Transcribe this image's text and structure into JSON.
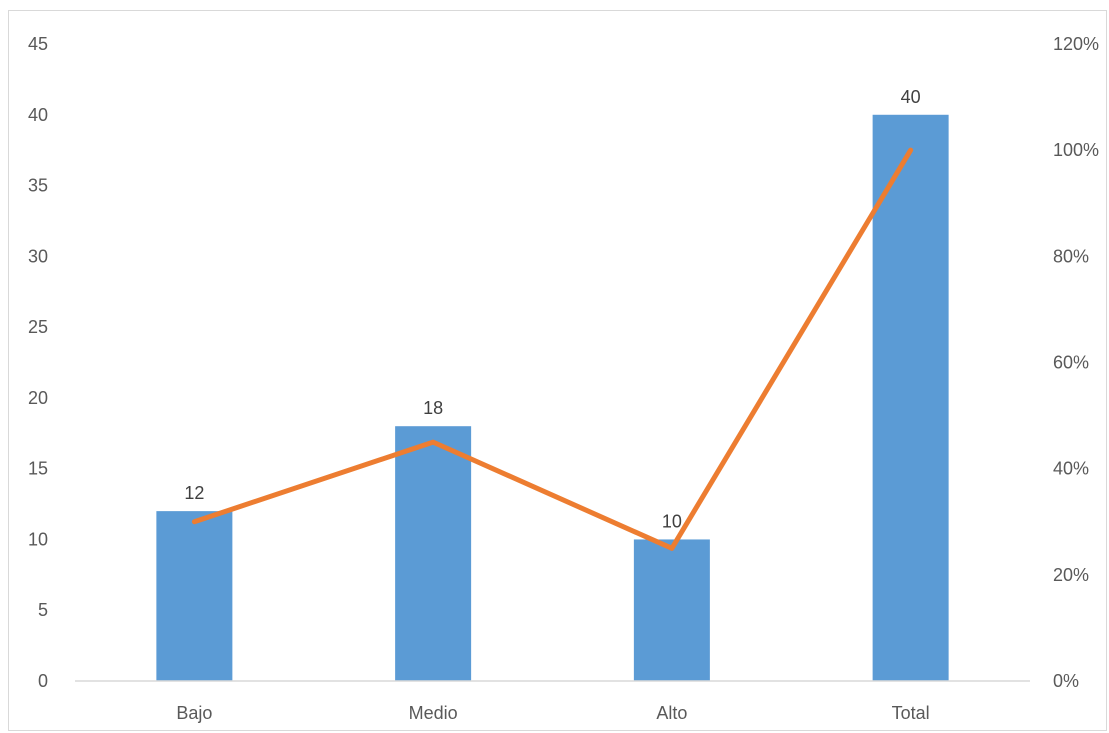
{
  "chart_data": {
    "type": "bar",
    "categories": [
      "Bajo",
      "Medio",
      "Alto",
      "Total"
    ],
    "series": [
      {
        "type": "bar",
        "axis": "left",
        "color": "#5B9BD5",
        "values": [
          12,
          18,
          10,
          40
        ],
        "data_labels": [
          "12",
          "18",
          "10",
          "40"
        ]
      },
      {
        "type": "line",
        "axis": "right",
        "color": "#ED7D31",
        "values": [
          0.3,
          0.45,
          0.25,
          1.0
        ]
      }
    ],
    "left_axis": {
      "ylim": [
        0,
        45
      ],
      "ticks": [
        0,
        5,
        10,
        15,
        20,
        25,
        30,
        35,
        40,
        45
      ],
      "tick_labels": [
        "0",
        "5",
        "10",
        "15",
        "20",
        "25",
        "30",
        "35",
        "40",
        "45"
      ]
    },
    "right_axis": {
      "ylim": [
        0,
        1.2
      ],
      "ticks": [
        0,
        0.2,
        0.4,
        0.6,
        0.8,
        1.0,
        1.2
      ],
      "tick_labels": [
        "0%",
        "20%",
        "40%",
        "60%",
        "80%",
        "100%",
        "120%"
      ]
    },
    "grid": false,
    "legend": "none"
  }
}
